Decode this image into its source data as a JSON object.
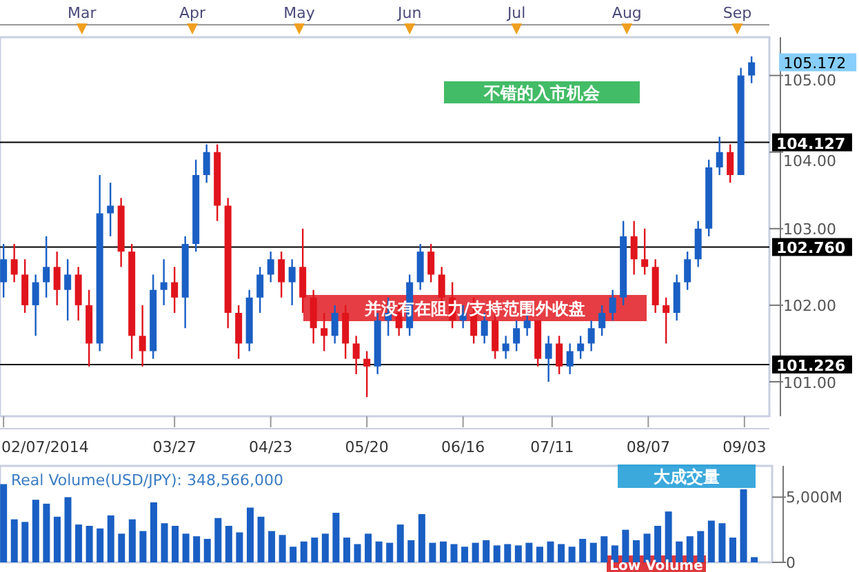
{
  "chart_data": [
    {
      "type": "candlestick",
      "x": [
        "2014-02-07",
        "2014-02-10",
        "2014-02-13",
        "2014-02-16",
        "2014-02-19",
        "2014-02-22",
        "2014-02-25",
        "2014-02-28",
        "2014-03-03",
        "2014-03-06",
        "2014-03-09",
        "2014-03-12",
        "2014-03-15",
        "2014-03-18",
        "2014-03-21",
        "2014-03-24",
        "2014-03-27",
        "2014-03-30",
        "2014-04-02",
        "2014-04-05",
        "2014-04-08",
        "2014-04-11",
        "2014-04-14",
        "2014-04-17",
        "2014-04-20",
        "2014-04-23",
        "2014-04-26",
        "2014-04-29",
        "2014-05-02",
        "2014-05-05",
        "2014-05-08",
        "2014-05-11",
        "2014-05-14",
        "2014-05-17",
        "2014-05-20",
        "2014-05-23",
        "2014-05-26",
        "2014-05-29",
        "2014-06-01",
        "2014-06-04",
        "2014-06-07",
        "2014-06-10",
        "2014-06-13",
        "2014-06-16",
        "2014-06-19",
        "2014-06-22",
        "2014-06-25",
        "2014-06-28",
        "2014-07-01",
        "2014-07-04",
        "2014-07-07",
        "2014-07-10",
        "2014-07-13",
        "2014-07-16",
        "2014-07-19",
        "2014-07-22",
        "2014-07-25",
        "2014-07-28",
        "2014-07-31",
        "2014-08-03",
        "2014-08-06",
        "2014-08-09",
        "2014-08-12",
        "2014-08-15",
        "2014-08-18",
        "2014-08-21",
        "2014-08-24",
        "2014-08-27",
        "2014-08-30",
        "2014-09-02",
        "2014-09-05"
      ],
      "ohlc": [
        [
          102.3,
          102.8,
          102.1,
          102.6
        ],
        [
          102.6,
          102.8,
          102.3,
          102.4
        ],
        [
          102.4,
          102.6,
          101.9,
          102.0
        ],
        [
          102.0,
          102.4,
          101.6,
          102.3
        ],
        [
          102.3,
          102.9,
          102.1,
          102.5
        ],
        [
          102.5,
          102.7,
          102.0,
          102.2
        ],
        [
          102.2,
          102.6,
          101.8,
          102.4
        ],
        [
          102.4,
          102.5,
          101.8,
          102.0
        ],
        [
          102.0,
          102.2,
          101.2,
          101.5
        ],
        [
          101.5,
          103.7,
          101.4,
          103.2
        ],
        [
          103.2,
          103.6,
          102.9,
          103.3
        ],
        [
          103.3,
          103.4,
          102.5,
          102.7
        ],
        [
          102.7,
          102.8,
          101.3,
          101.6
        ],
        [
          101.6,
          102.0,
          101.2,
          101.4
        ],
        [
          101.4,
          102.4,
          101.3,
          102.2
        ],
        [
          102.2,
          102.6,
          102.0,
          102.3
        ],
        [
          102.3,
          102.5,
          101.9,
          102.1
        ],
        [
          102.1,
          102.9,
          101.7,
          102.8
        ],
        [
          102.8,
          103.9,
          102.7,
          103.7
        ],
        [
          103.7,
          104.1,
          103.6,
          104.0
        ],
        [
          104.0,
          104.1,
          103.1,
          103.3
        ],
        [
          103.3,
          103.4,
          101.7,
          101.9
        ],
        [
          101.9,
          102.0,
          101.3,
          101.5
        ],
        [
          101.5,
          102.2,
          101.4,
          102.1
        ],
        [
          102.1,
          102.5,
          101.9,
          102.4
        ],
        [
          102.4,
          102.7,
          102.3,
          102.6
        ],
        [
          102.6,
          102.7,
          102.1,
          102.3
        ],
        [
          102.3,
          102.6,
          102.0,
          102.5
        ],
        [
          102.5,
          103.0,
          101.9,
          102.1
        ],
        [
          102.1,
          102.2,
          101.5,
          101.7
        ],
        [
          101.7,
          101.9,
          101.4,
          101.6
        ],
        [
          101.6,
          102.0,
          101.5,
          101.9
        ],
        [
          101.9,
          102.0,
          101.3,
          101.5
        ],
        [
          101.5,
          101.6,
          101.1,
          101.3
        ],
        [
          101.3,
          101.4,
          100.8,
          101.2
        ],
        [
          101.2,
          101.9,
          101.1,
          101.8
        ],
        [
          101.8,
          102.1,
          101.6,
          101.9
        ],
        [
          101.9,
          102.0,
          101.6,
          101.7
        ],
        [
          101.7,
          102.4,
          101.6,
          102.3
        ],
        [
          102.3,
          102.8,
          102.2,
          102.7
        ],
        [
          102.7,
          102.8,
          102.3,
          102.4
        ],
        [
          102.4,
          102.5,
          102.0,
          102.1
        ],
        [
          102.1,
          102.3,
          101.7,
          101.8
        ],
        [
          101.8,
          102.0,
          101.7,
          101.9
        ],
        [
          101.9,
          102.1,
          101.5,
          101.6
        ],
        [
          101.6,
          101.9,
          101.5,
          101.8
        ],
        [
          101.8,
          101.9,
          101.3,
          101.4
        ],
        [
          101.4,
          101.6,
          101.3,
          101.5
        ],
        [
          101.5,
          101.8,
          101.4,
          101.7
        ],
        [
          101.7,
          101.9,
          101.6,
          101.8
        ],
        [
          101.8,
          101.8,
          101.2,
          101.3
        ],
        [
          101.3,
          101.6,
          101.0,
          101.5
        ],
        [
          101.5,
          101.6,
          101.1,
          101.2
        ],
        [
          101.2,
          101.5,
          101.1,
          101.4
        ],
        [
          101.4,
          101.6,
          101.3,
          101.5
        ],
        [
          101.5,
          101.8,
          101.4,
          101.7
        ],
        [
          101.7,
          102.0,
          101.6,
          101.9
        ],
        [
          101.9,
          102.2,
          101.8,
          102.1
        ],
        [
          102.1,
          103.1,
          102.0,
          102.9
        ],
        [
          102.9,
          103.1,
          102.4,
          102.6
        ],
        [
          102.6,
          103.0,
          102.4,
          102.5
        ],
        [
          102.5,
          102.6,
          101.9,
          102.0
        ],
        [
          102.0,
          102.1,
          101.5,
          101.9
        ],
        [
          101.9,
          102.4,
          101.8,
          102.3
        ],
        [
          102.3,
          102.7,
          102.2,
          102.6
        ],
        [
          102.6,
          103.1,
          102.5,
          103.0
        ],
        [
          103.0,
          103.9,
          102.9,
          103.8
        ],
        [
          103.8,
          104.2,
          103.7,
          104.0
        ],
        [
          104.0,
          104.1,
          103.6,
          103.7
        ],
        [
          103.7,
          105.1,
          103.7,
          105.0
        ],
        [
          105.0,
          105.25,
          104.9,
          105.172
        ]
      ],
      "colors": [
        "#1a5fc4",
        "#e0141c",
        "#e0141c",
        "#1a5fc4",
        "#1a5fc4",
        "#e0141c",
        "#1a5fc4",
        "#e0141c",
        "#e0141c",
        "#1a5fc4",
        "#1a5fc4",
        "#e0141c",
        "#e0141c",
        "#e0141c",
        "#1a5fc4",
        "#1a5fc4",
        "#e0141c",
        "#1a5fc4",
        "#1a5fc4",
        "#1a5fc4",
        "#e0141c",
        "#e0141c",
        "#e0141c",
        "#1a5fc4",
        "#1a5fc4",
        "#1a5fc4",
        "#e0141c",
        "#1a5fc4",
        "#e0141c",
        "#e0141c",
        "#e0141c",
        "#1a5fc4",
        "#e0141c",
        "#e0141c",
        "#e0141c",
        "#1a5fc4",
        "#1a5fc4",
        "#e0141c",
        "#1a5fc4",
        "#1a5fc4",
        "#e0141c",
        "#e0141c",
        "#e0141c",
        "#1a5fc4",
        "#e0141c",
        "#1a5fc4",
        "#e0141c",
        "#1a5fc4",
        "#1a5fc4",
        "#1a5fc4",
        "#e0141c",
        "#1a5fc4",
        "#e0141c",
        "#1a5fc4",
        "#1a5fc4",
        "#1a5fc4",
        "#1a5fc4",
        "#1a5fc4",
        "#1a5fc4",
        "#e0141c",
        "#e0141c",
        "#e0141c",
        "#e0141c",
        "#1a5fc4",
        "#1a5fc4",
        "#1a5fc4",
        "#1a5fc4",
        "#1a5fc4",
        "#e0141c",
        "#1a5fc4",
        "#1a5fc4"
      ],
      "xlim": [
        "2014-02-06",
        "2014-09-10"
      ],
      "xticks": [
        {
          "value": "2014-02-07",
          "label": "02/07/2014"
        },
        {
          "value": "2014-03-27",
          "label": "03/27"
        },
        {
          "value": "2014-04-23",
          "label": "04/23"
        },
        {
          "value": "2014-05-20",
          "label": "05/20"
        },
        {
          "value": "2014-06-16",
          "label": "06/16"
        },
        {
          "value": "2014-07-11",
          "label": "07/11"
        },
        {
          "value": "2014-08-07",
          "label": "08/07"
        },
        {
          "value": "2014-09-03",
          "label": "09/03"
        }
      ],
      "x2lim": [
        "2014-02-06",
        "2014-09-10"
      ],
      "x2ticks": [
        {
          "value": "2014-03-01",
          "label": "Mar"
        },
        {
          "value": "2014-04-01",
          "label": "Apr"
        },
        {
          "value": "2014-05-01",
          "label": "May"
        },
        {
          "value": "2014-06-01",
          "label": "Jun"
        },
        {
          "value": "2014-07-01",
          "label": "Jul"
        },
        {
          "value": "2014-08-01",
          "label": "Aug"
        },
        {
          "value": "2014-09-01",
          "label": "Sep"
        }
      ],
      "ylim": [
        100.55,
        105.5
      ],
      "yticks": [
        {
          "value": 101,
          "label": "101.00"
        },
        {
          "value": 102,
          "label": "102.00"
        },
        {
          "value": 103,
          "label": "103.00"
        },
        {
          "value": 104,
          "label": "104.00"
        },
        {
          "value": 105,
          "label": "105.00"
        }
      ],
      "ref_lines": [
        {
          "axis": "y",
          "value": 104.127,
          "label": "104.127",
          "color": "#000000"
        },
        {
          "axis": "y",
          "value": 102.76,
          "label": "102.760",
          "color": "#000000"
        },
        {
          "axis": "y",
          "value": 101.226,
          "label": "101.226",
          "color": "#000000"
        }
      ],
      "annotations": [
        "不错的入市机会",
        "并没有在阻力/支持范围外收盘",
        {
          "text": "105.172",
          "x": "2014-09-05",
          "y": 105.172
        }
      ]
    },
    {
      "type": "bar",
      "title": "Real Volume(USD/JPY): 348,566,000",
      "x": [
        "2014-02-07",
        "2014-02-10",
        "2014-02-13",
        "2014-02-16",
        "2014-02-19",
        "2014-02-22",
        "2014-02-25",
        "2014-02-28",
        "2014-03-03",
        "2014-03-06",
        "2014-03-09",
        "2014-03-12",
        "2014-03-15",
        "2014-03-18",
        "2014-03-21",
        "2014-03-24",
        "2014-03-27",
        "2014-03-30",
        "2014-04-02",
        "2014-04-05",
        "2014-04-08",
        "2014-04-11",
        "2014-04-14",
        "2014-04-17",
        "2014-04-20",
        "2014-04-23",
        "2014-04-26",
        "2014-04-29",
        "2014-05-02",
        "2014-05-05",
        "2014-05-08",
        "2014-05-11",
        "2014-05-14",
        "2014-05-17",
        "2014-05-20",
        "2014-05-23",
        "2014-05-26",
        "2014-05-29",
        "2014-06-01",
        "2014-06-04",
        "2014-06-07",
        "2014-06-10",
        "2014-06-13",
        "2014-06-16",
        "2014-06-19",
        "2014-06-22",
        "2014-06-25",
        "2014-06-28",
        "2014-07-01",
        "2014-07-04",
        "2014-07-07",
        "2014-07-10",
        "2014-07-13",
        "2014-07-16",
        "2014-07-19",
        "2014-07-22",
        "2014-07-25",
        "2014-07-28",
        "2014-07-31",
        "2014-08-03",
        "2014-08-06",
        "2014-08-09",
        "2014-08-12",
        "2014-08-15",
        "2014-08-18",
        "2014-08-21",
        "2014-08-24",
        "2014-08-27",
        "2014-08-30",
        "2014-09-02",
        "2014-09-05"
      ],
      "series": [
        {
          "color": "#1a5fc4",
          "values": [
            6000,
            3300,
            3100,
            4800,
            4500,
            3500,
            5000,
            2900,
            2800,
            2600,
            3600,
            2200,
            3300,
            2400,
            4600,
            3000,
            2800,
            2200,
            2000,
            1800,
            3400,
            2800,
            2300,
            4200,
            3500,
            2400,
            2100,
            1200,
            1600,
            1900,
            2200,
            3800,
            1900,
            1400,
            2200,
            1600,
            1500,
            2900,
            1700,
            3700,
            1500,
            1600,
            1400,
            1200,
            1500,
            1700,
            1300,
            1400,
            1300,
            1500,
            1200,
            1600,
            1400,
            1200,
            1800,
            1500,
            2000,
            1300,
            2500,
            1700,
            2200,
            2800,
            3900,
            1600,
            2000,
            2400,
            3200,
            3000,
            1900,
            5600,
            400
          ]
        }
      ],
      "xlim": [
        "2014-02-06",
        "2014-09-10"
      ],
      "ylim": [
        0,
        7400
      ],
      "yticks": [
        0,
        {
          "value": 5000,
          "label": "5,000M"
        }
      ],
      "tick_labels": "y",
      "annotations": [
        "大成交量",
        "Low Volume"
      ]
    }
  ]
}
